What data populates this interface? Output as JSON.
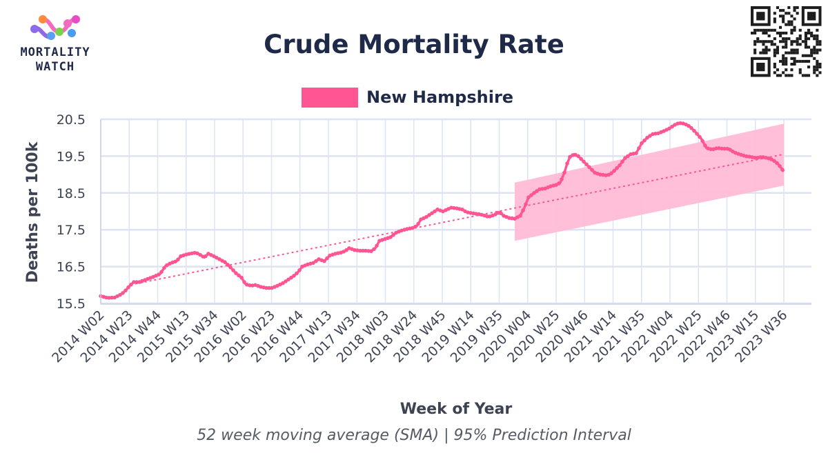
{
  "logo": {
    "line1": "MORTALITY",
    "line2": "WATCH"
  },
  "chart_data": {
    "type": "line",
    "title": "Crude Mortality Rate",
    "subtitle": "52 week moving average (SMA) | 95% Prediction Interval",
    "xlabel": "Week of Year",
    "ylabel": "Deaths per 100k",
    "ylim": [
      15.45,
      20.5
    ],
    "yticks": [
      15.5,
      16.5,
      17.5,
      18.5,
      19.5,
      20.5
    ],
    "ytick_labels": [
      "15.5",
      "16.5",
      "17.5",
      "18.5",
      "19.5",
      "20.5"
    ],
    "xticks": [
      "2014 W02",
      "2014 W23",
      "2014 W44",
      "2015 W13",
      "2015 W34",
      "2016 W02",
      "2016 W23",
      "2016 W44",
      "2017 W13",
      "2017 W34",
      "2018 W03",
      "2018 W24",
      "2018 W45",
      "2019 W14",
      "2019 W35",
      "2020 W04",
      "2020 W25",
      "2020 W46",
      "2021 W14",
      "2021 W35",
      "2022 W04",
      "2022 W25",
      "2022 W46",
      "2023 W15",
      "2023 W36"
    ],
    "week_index_range": [
      0,
      507
    ],
    "grid": true,
    "legend_position": "top-center",
    "series": [
      {
        "name": "New Hampshire",
        "color": "#ff5592",
        "points": [
          [
            0,
            15.7
          ],
          [
            5,
            15.65
          ],
          [
            10,
            15.66
          ],
          [
            15,
            15.75
          ],
          [
            18,
            15.85
          ],
          [
            21,
            15.98
          ],
          [
            24,
            16.08
          ],
          [
            28,
            16.08
          ],
          [
            33,
            16.15
          ],
          [
            38,
            16.22
          ],
          [
            43,
            16.3
          ],
          [
            47,
            16.52
          ],
          [
            51,
            16.6
          ],
          [
            55,
            16.65
          ],
          [
            58,
            16.78
          ],
          [
            62,
            16.83
          ],
          [
            66,
            16.86
          ],
          [
            69,
            16.88
          ],
          [
            72,
            16.82
          ],
          [
            75,
            16.75
          ],
          [
            78,
            16.85
          ],
          [
            82,
            16.78
          ],
          [
            86,
            16.7
          ],
          [
            90,
            16.62
          ],
          [
            94,
            16.48
          ],
          [
            98,
            16.32
          ],
          [
            102,
            16.2
          ],
          [
            105,
            16.02
          ],
          [
            109,
            15.98
          ],
          [
            112,
            16.0
          ],
          [
            116,
            15.95
          ],
          [
            120,
            15.92
          ],
          [
            124,
            15.92
          ],
          [
            128,
            15.98
          ],
          [
            132,
            16.05
          ],
          [
            136,
            16.15
          ],
          [
            140,
            16.25
          ],
          [
            143,
            16.35
          ],
          [
            146,
            16.5
          ],
          [
            150,
            16.56
          ],
          [
            154,
            16.6
          ],
          [
            158,
            16.7
          ],
          [
            162,
            16.65
          ],
          [
            166,
            16.8
          ],
          [
            170,
            16.85
          ],
          [
            174,
            16.88
          ],
          [
            177,
            16.92
          ],
          [
            180,
            17.0
          ],
          [
            184,
            16.95
          ],
          [
            188,
            16.93
          ],
          [
            192,
            16.93
          ],
          [
            196,
            16.92
          ],
          [
            199,
            17.0
          ],
          [
            202,
            17.2
          ],
          [
            206,
            17.25
          ],
          [
            210,
            17.3
          ],
          [
            214,
            17.42
          ],
          [
            218,
            17.48
          ],
          [
            222,
            17.52
          ],
          [
            226,
            17.55
          ],
          [
            229,
            17.6
          ],
          [
            232,
            17.78
          ],
          [
            236,
            17.85
          ],
          [
            240,
            17.95
          ],
          [
            244,
            18.05
          ],
          [
            248,
            18.0
          ],
          [
            251,
            18.05
          ],
          [
            254,
            18.1
          ],
          [
            258,
            18.08
          ],
          [
            262,
            18.05
          ],
          [
            265,
            17.98
          ],
          [
            269,
            17.95
          ],
          [
            273,
            17.93
          ],
          [
            277,
            17.9
          ],
          [
            281,
            17.85
          ],
          [
            285,
            17.9
          ],
          [
            289,
            17.98
          ],
          [
            292,
            17.88
          ],
          [
            296,
            17.82
          ],
          [
            300,
            17.8
          ],
          [
            304,
            17.88
          ],
          [
            307,
            18.1
          ],
          [
            310,
            18.38
          ],
          [
            314,
            18.5
          ],
          [
            318,
            18.6
          ],
          [
            322,
            18.62
          ],
          [
            326,
            18.68
          ],
          [
            330,
            18.72
          ],
          [
            333,
            18.78
          ],
          [
            336,
            19.05
          ],
          [
            338,
            19.3
          ],
          [
            340,
            19.48
          ],
          [
            343,
            19.55
          ],
          [
            346,
            19.5
          ],
          [
            350,
            19.35
          ],
          [
            354,
            19.2
          ],
          [
            358,
            19.05
          ],
          [
            362,
            19.0
          ],
          [
            366,
            18.98
          ],
          [
            369,
            19.0
          ],
          [
            372,
            19.1
          ],
          [
            376,
            19.25
          ],
          [
            380,
            19.45
          ],
          [
            384,
            19.55
          ],
          [
            388,
            19.58
          ],
          [
            392,
            19.85
          ],
          [
            396,
            20.0
          ],
          [
            400,
            20.1
          ],
          [
            404,
            20.12
          ],
          [
            408,
            20.18
          ],
          [
            412,
            20.25
          ],
          [
            416,
            20.35
          ],
          [
            419,
            20.4
          ],
          [
            423,
            20.38
          ],
          [
            427,
            20.3
          ],
          [
            431,
            20.15
          ],
          [
            435,
            19.98
          ],
          [
            439,
            19.72
          ],
          [
            443,
            19.68
          ],
          [
            447,
            19.72
          ],
          [
            451,
            19.7
          ],
          [
            455,
            19.7
          ],
          [
            459,
            19.6
          ],
          [
            463,
            19.55
          ],
          [
            467,
            19.5
          ],
          [
            471,
            19.48
          ],
          [
            475,
            19.45
          ],
          [
            479,
            19.48
          ],
          [
            483,
            19.45
          ],
          [
            487,
            19.4
          ],
          [
            491,
            19.28
          ],
          [
            495,
            19.08
          ]
        ]
      }
    ],
    "trend": {
      "color": "#ff5592",
      "start": [
        25,
        16.03
      ],
      "end": [
        495,
        19.55
      ]
    },
    "prediction_interval": {
      "color": "#ffbcd6",
      "start": [
        300,
        17.2,
        18.78
      ],
      "end": [
        495,
        18.7,
        20.38
      ]
    }
  }
}
